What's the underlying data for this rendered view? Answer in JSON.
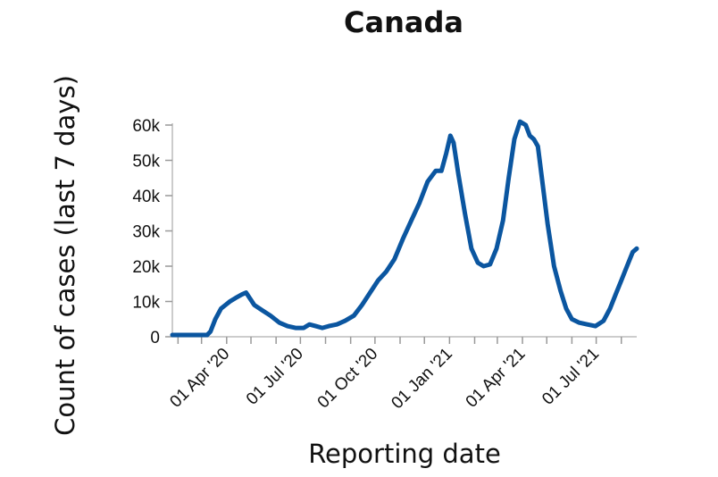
{
  "chart_data": {
    "type": "line",
    "title": "Canada",
    "xlabel": "Reporting date",
    "ylabel": "Count of cases (last 7 days)",
    "x_ticks": [
      "01 Apr '20",
      "01 Jul '20",
      "01 Oct '20",
      "01 Jan '21",
      "01 Apr '21",
      "01 Jul '21"
    ],
    "y_ticks": [
      "0",
      "10k",
      "20k",
      "30k",
      "40k",
      "50k",
      "60k"
    ],
    "ylim": [
      0,
      60000
    ],
    "xlim": [
      "2020-01-25",
      "2021-08-20"
    ],
    "grid": false,
    "line_color": "#0b56a0",
    "series": [
      {
        "x": [
          "2020-01-25",
          "2020-03-08",
          "2020-03-12",
          "2020-03-18",
          "2020-03-25",
          "2020-04-05",
          "2020-04-12",
          "2020-04-20",
          "2020-04-25",
          "2020-05-05",
          "2020-05-15",
          "2020-05-25",
          "2020-06-05",
          "2020-06-15",
          "2020-06-25",
          "2020-07-05",
          "2020-07-12",
          "2020-07-20",
          "2020-07-28",
          "2020-08-05",
          "2020-08-15",
          "2020-08-25",
          "2020-09-05",
          "2020-09-15",
          "2020-09-25",
          "2020-10-05",
          "2020-10-15",
          "2020-10-25",
          "2020-11-05",
          "2020-11-15",
          "2020-11-25",
          "2020-12-05",
          "2020-12-15",
          "2020-12-22",
          "2020-12-28",
          "2021-01-02",
          "2021-01-06",
          "2021-01-12",
          "2021-01-20",
          "2021-01-28",
          "2021-02-05",
          "2021-02-12",
          "2021-02-20",
          "2021-02-28",
          "2021-03-08",
          "2021-03-15",
          "2021-03-22",
          "2021-03-29",
          "2021-04-05",
          "2021-04-10",
          "2021-04-15",
          "2021-04-20",
          "2021-04-25",
          "2021-05-02",
          "2021-05-10",
          "2021-05-18",
          "2021-05-25",
          "2021-06-01",
          "2021-06-10",
          "2021-06-20",
          "2021-06-30",
          "2021-07-10",
          "2021-07-18",
          "2021-07-25",
          "2021-08-01",
          "2021-08-08",
          "2021-08-15",
          "2021-08-20"
        ],
        "values": [
          500,
          500,
          1500,
          5000,
          8000,
          10000,
          11000,
          12000,
          12500,
          9000,
          7500,
          6000,
          4000,
          3000,
          2500,
          2500,
          3500,
          3000,
          2500,
          3000,
          3500,
          4500,
          6000,
          9000,
          12500,
          16000,
          18500,
          22000,
          28000,
          33000,
          38000,
          44000,
          47000,
          47000,
          52000,
          57000,
          55000,
          46000,
          35000,
          25000,
          21000,
          20000,
          20500,
          25000,
          33000,
          45000,
          56000,
          61000,
          60000,
          57000,
          56000,
          54000,
          45000,
          32000,
          20000,
          13000,
          8000,
          5000,
          4000,
          3500,
          3000,
          4500,
          8000,
          12000,
          16000,
          20000,
          24000,
          25000
        ]
      }
    ]
  }
}
